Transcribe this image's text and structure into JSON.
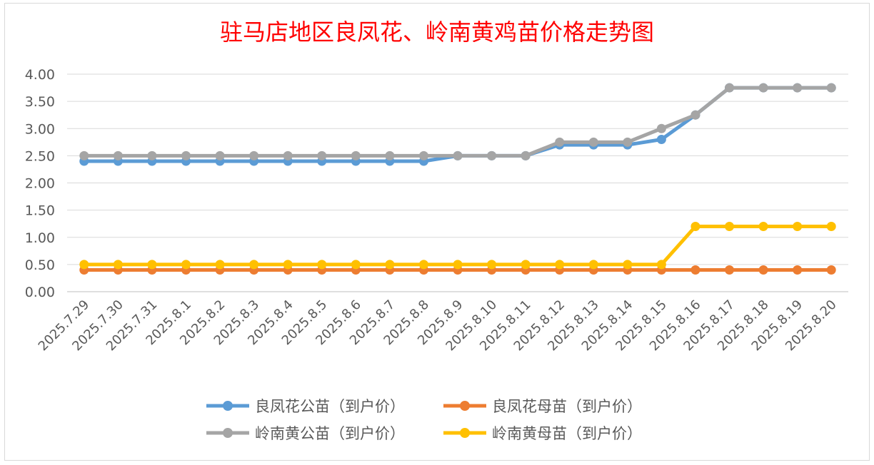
{
  "chart_data": {
    "type": "line",
    "title": "驻马店地区良凤花、岭南黄鸡苗价格走势图",
    "xlabel": "",
    "ylabel": "",
    "ylim": [
      0,
      4
    ],
    "yticks": [
      "0.00",
      "0.50",
      "1.00",
      "1.50",
      "2.00",
      "2.50",
      "3.00",
      "3.50",
      "4.00"
    ],
    "grid": true,
    "legend_position": "bottom",
    "categories": [
      "2025.7.29",
      "2025.7.30",
      "2025.7.31",
      "2025.8.1",
      "2025.8.2",
      "2025.8.3",
      "2025.8.4",
      "2025.8.5",
      "2025.8.6",
      "2025.8.7",
      "2025.8.8",
      "2025.8.9",
      "2025.8.10",
      "2025.8.11",
      "2025.8.12",
      "2025.8.13",
      "2025.8.14",
      "2025.8.15",
      "2025.8.16",
      "2025.8.17",
      "2025.8.18",
      "2025.8.19",
      "2025.8.20"
    ],
    "series": [
      {
        "name": "良凤花公苗（到户价）",
        "color": "#5b9bd5",
        "values": [
          2.4,
          2.4,
          2.4,
          2.4,
          2.4,
          2.4,
          2.4,
          2.4,
          2.4,
          2.4,
          2.4,
          2.5,
          2.5,
          2.5,
          2.7,
          2.7,
          2.7,
          2.8,
          3.25,
          3.75,
          3.75,
          3.75,
          3.75
        ]
      },
      {
        "name": "良凤花母苗（到户价）",
        "color": "#ed7d31",
        "values": [
          0.4,
          0.4,
          0.4,
          0.4,
          0.4,
          0.4,
          0.4,
          0.4,
          0.4,
          0.4,
          0.4,
          0.4,
          0.4,
          0.4,
          0.4,
          0.4,
          0.4,
          0.4,
          0.4,
          0.4,
          0.4,
          0.4,
          0.4
        ]
      },
      {
        "name": "岭南黄公苗（到户价）",
        "color": "#a5a5a5",
        "values": [
          2.5,
          2.5,
          2.5,
          2.5,
          2.5,
          2.5,
          2.5,
          2.5,
          2.5,
          2.5,
          2.5,
          2.5,
          2.5,
          2.5,
          2.75,
          2.75,
          2.75,
          3.0,
          3.25,
          3.75,
          3.75,
          3.75,
          3.75
        ]
      },
      {
        "name": "岭南黄母苗（到户价）",
        "color": "#ffc000",
        "values": [
          0.5,
          0.5,
          0.5,
          0.5,
          0.5,
          0.5,
          0.5,
          0.5,
          0.5,
          0.5,
          0.5,
          0.5,
          0.5,
          0.5,
          0.5,
          0.5,
          0.5,
          0.5,
          1.2,
          1.2,
          1.2,
          1.2,
          1.2
        ]
      }
    ]
  }
}
